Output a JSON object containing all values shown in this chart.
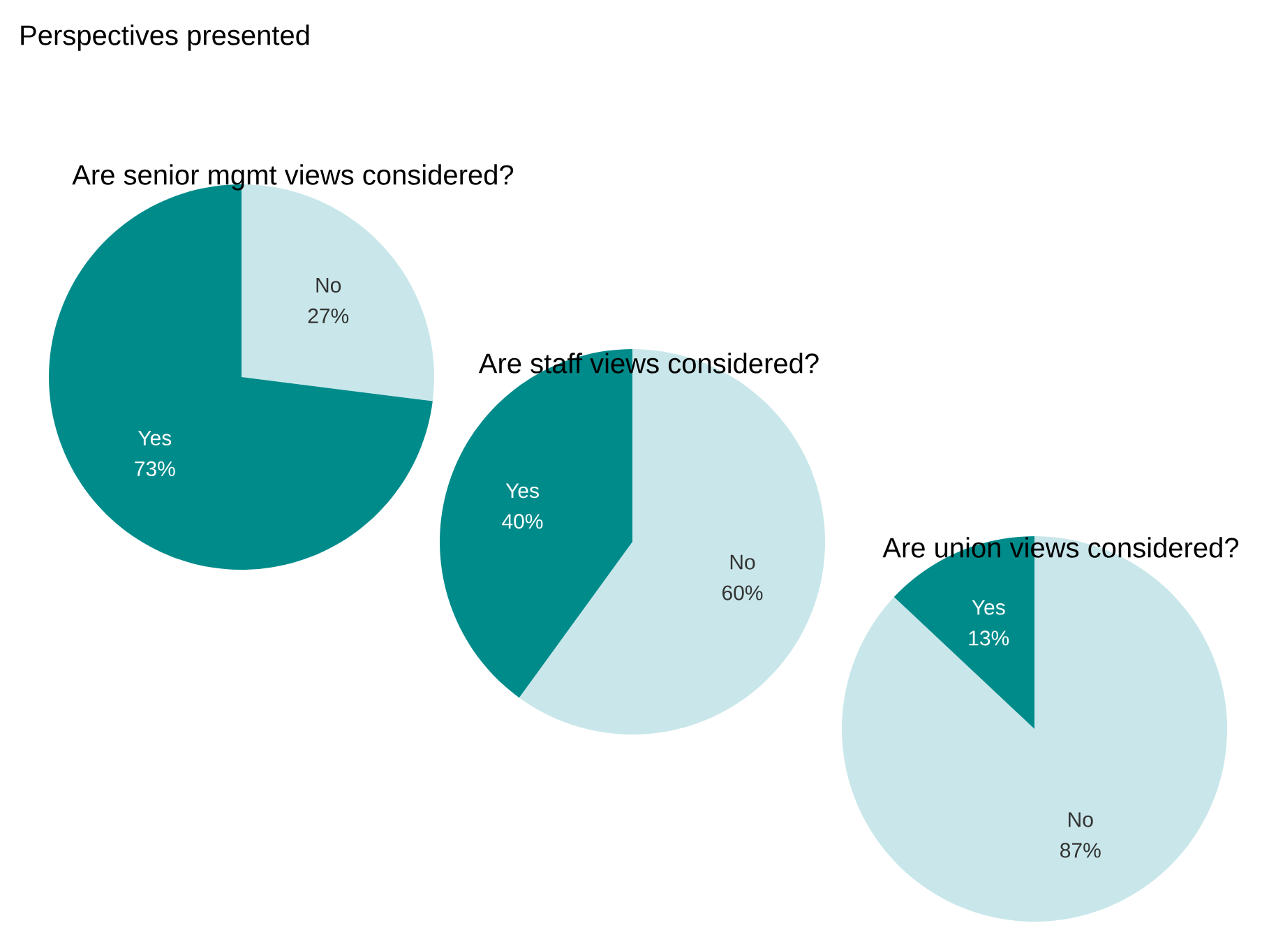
{
  "chart_data": [
    {
      "type": "pie",
      "title": "Perspectives presented",
      "subtitle": "Are senior mgmt views considered?",
      "categories": [
        "No",
        "Yes"
      ],
      "values": [
        27,
        73
      ],
      "colors": [
        "#c9e7ea",
        "#008b8b"
      ],
      "value_labels": [
        "27%",
        "73%"
      ]
    },
    {
      "type": "pie",
      "subtitle": "Are staff views considered?",
      "categories": [
        "No",
        "Yes"
      ],
      "values": [
        60,
        40
      ],
      "colors": [
        "#c9e7ea",
        "#008b8b"
      ],
      "value_labels": [
        "60%",
        "40%"
      ]
    },
    {
      "type": "pie",
      "subtitle": "Are union views considered?",
      "categories": [
        "No",
        "Yes"
      ],
      "values": [
        87,
        13
      ],
      "colors": [
        "#c9e7ea",
        "#008b8b"
      ],
      "value_labels": [
        "87%",
        "13%"
      ]
    }
  ]
}
